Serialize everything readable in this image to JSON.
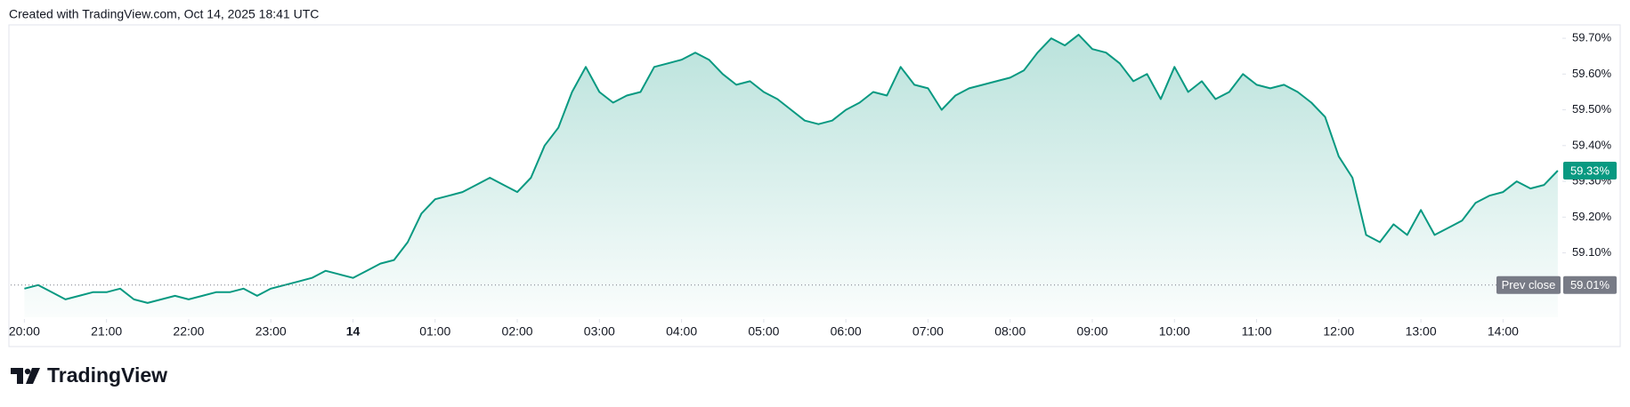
{
  "chart_data": {
    "type": "area",
    "title": "Created with TradingView.com, Oct 14, 2025 18:41 UTC",
    "brand": "TradingView",
    "x": [
      "20:00",
      "20:10",
      "20:20",
      "20:30",
      "20:40",
      "20:50",
      "21:00",
      "21:10",
      "21:20",
      "21:30",
      "21:40",
      "21:50",
      "22:00",
      "22:10",
      "22:20",
      "22:30",
      "22:40",
      "22:50",
      "23:00",
      "23:10",
      "23:20",
      "23:30",
      "23:40",
      "23:50",
      "00:00",
      "00:10",
      "00:20",
      "00:30",
      "00:40",
      "00:50",
      "01:00",
      "01:10",
      "01:20",
      "01:30",
      "01:40",
      "01:50",
      "02:00",
      "02:10",
      "02:20",
      "02:30",
      "02:40",
      "02:50",
      "03:00",
      "03:10",
      "03:20",
      "03:30",
      "03:40",
      "03:50",
      "04:00",
      "04:10",
      "04:20",
      "04:30",
      "04:40",
      "04:50",
      "05:00",
      "05:10",
      "05:20",
      "05:30",
      "05:40",
      "05:50",
      "06:00",
      "06:10",
      "06:20",
      "06:30",
      "06:40",
      "06:50",
      "07:00",
      "07:10",
      "07:20",
      "07:30",
      "07:40",
      "07:50",
      "08:00",
      "08:10",
      "08:20",
      "08:30",
      "08:40",
      "08:50",
      "09:00",
      "09:10",
      "09:20",
      "09:30",
      "09:40",
      "09:50",
      "10:00",
      "10:10",
      "10:20",
      "10:30",
      "10:40",
      "10:50",
      "11:00",
      "11:10",
      "11:20",
      "11:30",
      "11:40",
      "11:50",
      "12:00",
      "12:10",
      "12:20",
      "12:30",
      "12:40",
      "12:50",
      "13:00",
      "13:10",
      "13:20",
      "13:30",
      "13:40",
      "13:50",
      "14:00",
      "14:10",
      "14:20",
      "14:30",
      "14:40"
    ],
    "series": [
      {
        "color": "#089981",
        "values": [
          59.0,
          59.01,
          58.99,
          58.97,
          58.98,
          58.99,
          58.99,
          59.0,
          58.97,
          58.96,
          58.97,
          58.98,
          58.97,
          58.98,
          58.99,
          58.99,
          59.0,
          58.98,
          59.0,
          59.01,
          59.02,
          59.03,
          59.05,
          59.04,
          59.03,
          59.05,
          59.07,
          59.08,
          59.13,
          59.21,
          59.25,
          59.26,
          59.27,
          59.29,
          59.31,
          59.29,
          59.27,
          59.31,
          59.4,
          59.45,
          59.55,
          59.62,
          59.55,
          59.52,
          59.54,
          59.55,
          59.62,
          59.63,
          59.64,
          59.66,
          59.64,
          59.6,
          59.57,
          59.58,
          59.55,
          59.53,
          59.5,
          59.47,
          59.46,
          59.47,
          59.5,
          59.52,
          59.55,
          59.54,
          59.62,
          59.57,
          59.56,
          59.5,
          59.54,
          59.56,
          59.57,
          59.58,
          59.59,
          59.61,
          59.66,
          59.7,
          59.68,
          59.71,
          59.67,
          59.66,
          59.63,
          59.58,
          59.6,
          59.53,
          59.62,
          59.55,
          59.58,
          59.53,
          59.55,
          59.6,
          59.57,
          59.56,
          59.57,
          59.55,
          59.52,
          59.48,
          59.37,
          59.31,
          59.15,
          59.13,
          59.18,
          59.15,
          59.22,
          59.15,
          59.17,
          59.19,
          59.24,
          59.26,
          59.27,
          59.3,
          59.28,
          59.29,
          59.33
        ],
        "value_labels": [
          null,
          null,
          null,
          null,
          null,
          null,
          null,
          null,
          null,
          null,
          null,
          null,
          null,
          null,
          null,
          null,
          null,
          null,
          null,
          null,
          null,
          null,
          null,
          null,
          null,
          null,
          null,
          null,
          null,
          null,
          null,
          null,
          null,
          null,
          null,
          null,
          null,
          null,
          null,
          null,
          null,
          null,
          null,
          null,
          null,
          null,
          null,
          null,
          null,
          null,
          null,
          null,
          null,
          null,
          null,
          null,
          null,
          null,
          null,
          null,
          null,
          null,
          null,
          null,
          null,
          null,
          null,
          null,
          null,
          null,
          null,
          null,
          null,
          null,
          null,
          null,
          null,
          null,
          null,
          null,
          null,
          null,
          null,
          null,
          null,
          null,
          null,
          null,
          null,
          null,
          null,
          null,
          null,
          null,
          null,
          null,
          null,
          null,
          null,
          null,
          null,
          null,
          null,
          null,
          null,
          null,
          null,
          null,
          null,
          null,
          null,
          null,
          "59.33%"
        ]
      }
    ],
    "prev_close": {
      "name": "Prev close",
      "value": 59.01,
      "value_label": "59.01%",
      "color": "#787b86"
    },
    "xlim": [
      "19:50",
      "14:42"
    ],
    "xticks": [
      "20:00",
      "21:00",
      "22:00",
      "23:00",
      {
        "value": "00:00",
        "label": "14"
      },
      "01:00",
      "02:00",
      "03:00",
      "04:00",
      "05:00",
      "06:00",
      "07:00",
      "08:00",
      "09:00",
      "10:00",
      "11:00",
      "12:00",
      "13:00",
      "14:00"
    ],
    "ylim": [
      58.92,
      59.735
    ],
    "yticks": [
      {
        "value": 59.1,
        "label": "59.10%"
      },
      {
        "value": 59.2,
        "label": "59.20%"
      },
      {
        "value": 59.3,
        "label": "59.30%"
      },
      {
        "value": 59.4,
        "label": "59.40%"
      },
      {
        "value": 59.5,
        "label": "59.50%"
      },
      {
        "value": 59.6,
        "label": "59.60%"
      },
      {
        "value": 59.7,
        "label": "59.70%"
      }
    ],
    "grid": false
  }
}
